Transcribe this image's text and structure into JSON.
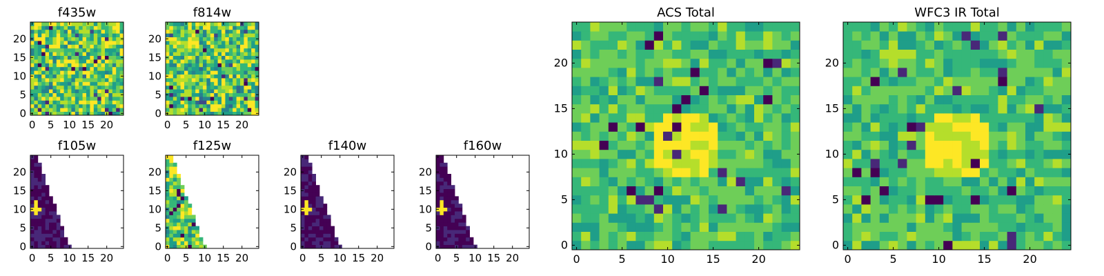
{
  "figure": {
    "colormap": [
      "#440154",
      "#482878",
      "#3e4989",
      "#31688e",
      "#26828e",
      "#1f9e89",
      "#35b779",
      "#6ece58",
      "#b5de2b",
      "#fde725"
    ]
  },
  "chart_data": [
    {
      "type": "heatmap",
      "title": "f435w",
      "pattern": "noise",
      "grid_size": 25,
      "xlim": [
        0,
        24
      ],
      "ylim": [
        0,
        24
      ],
      "xticks": [
        0,
        5,
        10,
        15,
        20
      ],
      "yticks": [
        0,
        5,
        10,
        15,
        20
      ]
    },
    {
      "type": "heatmap",
      "title": "f814w",
      "pattern": "noise",
      "grid_size": 25,
      "xlim": [
        0,
        24
      ],
      "ylim": [
        0,
        24
      ],
      "xticks": [
        0,
        5,
        10,
        15,
        20
      ],
      "yticks": [
        0,
        5,
        10,
        15,
        20
      ]
    },
    {
      "type": "heatmap",
      "title": "f105w",
      "pattern": "wedge-dark",
      "grid_size": 25,
      "xlim": [
        0,
        24
      ],
      "ylim": [
        0,
        24
      ],
      "xticks": [
        0,
        5,
        10,
        15,
        20
      ],
      "yticks": [
        0,
        5,
        10,
        15,
        20
      ]
    },
    {
      "type": "heatmap",
      "title": "f125w",
      "pattern": "wedge-bright",
      "grid_size": 25,
      "xlim": [
        0,
        24
      ],
      "ylim": [
        0,
        24
      ],
      "xticks": [
        0,
        5,
        10,
        15,
        20
      ],
      "yticks": [
        0,
        5,
        10,
        15,
        20
      ]
    },
    {
      "type": "heatmap",
      "title": "f140w",
      "pattern": "wedge-dark",
      "grid_size": 25,
      "xlim": [
        0,
        24
      ],
      "ylim": [
        0,
        24
      ],
      "xticks": [
        0,
        5,
        10,
        15,
        20
      ],
      "yticks": [
        0,
        5,
        10,
        15,
        20
      ]
    },
    {
      "type": "heatmap",
      "title": "f160w",
      "pattern": "wedge-dark",
      "grid_size": 25,
      "xlim": [
        0,
        24
      ],
      "ylim": [
        0,
        24
      ],
      "xticks": [
        0,
        5,
        10,
        15,
        20
      ],
      "yticks": [
        0,
        5,
        10,
        15,
        20
      ]
    },
    {
      "type": "heatmap",
      "title": "ACS Total",
      "pattern": "source",
      "grid_size": 25,
      "xlim": [
        0,
        24
      ],
      "ylim": [
        0,
        24
      ],
      "xticks": [
        0,
        5,
        10,
        15,
        20
      ],
      "yticks": [
        0,
        5,
        10,
        15,
        20
      ]
    },
    {
      "type": "heatmap",
      "title": "WFC3 IR Total",
      "pattern": "source",
      "grid_size": 25,
      "xlim": [
        0,
        24
      ],
      "ylim": [
        0,
        24
      ],
      "xticks": [
        0,
        5,
        10,
        15,
        20
      ],
      "yticks": [
        0,
        5,
        10,
        15,
        20
      ]
    }
  ]
}
